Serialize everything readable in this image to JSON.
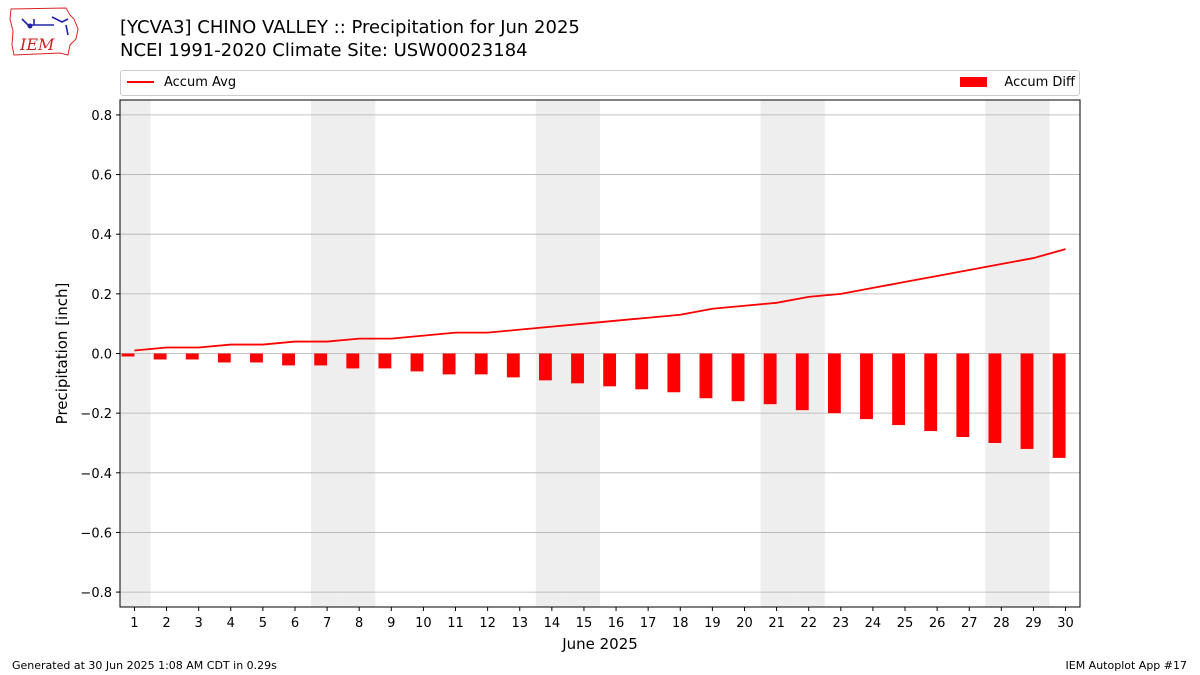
{
  "logo": {
    "text": "IEM"
  },
  "header": {
    "title": "[YCVA3] CHINO VALLEY :: Precipitation for Jun 2025",
    "subtitle": "NCEI 1991-2020 Climate Site: USW00023184"
  },
  "footer": {
    "left": "Generated at 30 Jun 2025 1:08 AM CDT in 0.29s",
    "right": "IEM Autoplot App #17"
  },
  "colors": {
    "series": "#ff0000",
    "weekend_shade": "#eeeeee",
    "grid": "#b0b0b0"
  },
  "chart_data": {
    "type": "bar",
    "xlabel": "June 2025",
    "ylabel": "Precipitation [inch]",
    "ylim": [
      -0.85,
      0.85
    ],
    "yticks": [
      -0.8,
      -0.6,
      -0.4,
      -0.2,
      0.0,
      0.2,
      0.4,
      0.6,
      0.8
    ],
    "ytick_labels": [
      "−0.8",
      "−0.6",
      "−0.4",
      "−0.2",
      "0.0",
      "0.2",
      "0.4",
      "0.6",
      "0.8"
    ],
    "grid": "horizontal",
    "legend_placement": "top",
    "x": [
      1,
      2,
      3,
      4,
      5,
      6,
      7,
      8,
      9,
      10,
      11,
      12,
      13,
      14,
      15,
      16,
      17,
      18,
      19,
      20,
      21,
      22,
      23,
      24,
      25,
      26,
      27,
      28,
      29,
      30
    ],
    "x_labels": [
      "1",
      "2",
      "3",
      "4",
      "5",
      "6",
      "7",
      "8",
      "9",
      "10",
      "11",
      "12",
      "13",
      "14",
      "15",
      "16",
      "17",
      "18",
      "19",
      "20",
      "21",
      "22",
      "23",
      "24",
      "25",
      "26",
      "27",
      "28",
      "29",
      "30"
    ],
    "weekend_days": [
      1,
      7,
      8,
      14,
      15,
      21,
      22,
      28,
      29
    ],
    "series": [
      {
        "name": "Accum Avg",
        "kind": "line",
        "values": [
          0.01,
          0.02,
          0.02,
          0.03,
          0.03,
          0.04,
          0.04,
          0.05,
          0.05,
          0.06,
          0.07,
          0.07,
          0.08,
          0.09,
          0.1,
          0.11,
          0.12,
          0.13,
          0.15,
          0.16,
          0.17,
          0.19,
          0.2,
          0.22,
          0.24,
          0.26,
          0.28,
          0.3,
          0.32,
          0.35
        ]
      },
      {
        "name": "Accum Diff",
        "kind": "bar",
        "values": [
          -0.01,
          -0.02,
          -0.02,
          -0.03,
          -0.03,
          -0.04,
          -0.04,
          -0.05,
          -0.05,
          -0.06,
          -0.07,
          -0.07,
          -0.08,
          -0.09,
          -0.1,
          -0.11,
          -0.12,
          -0.13,
          -0.15,
          -0.16,
          -0.17,
          -0.19,
          -0.2,
          -0.22,
          -0.24,
          -0.26,
          -0.28,
          -0.3,
          -0.32,
          -0.35
        ]
      }
    ]
  }
}
